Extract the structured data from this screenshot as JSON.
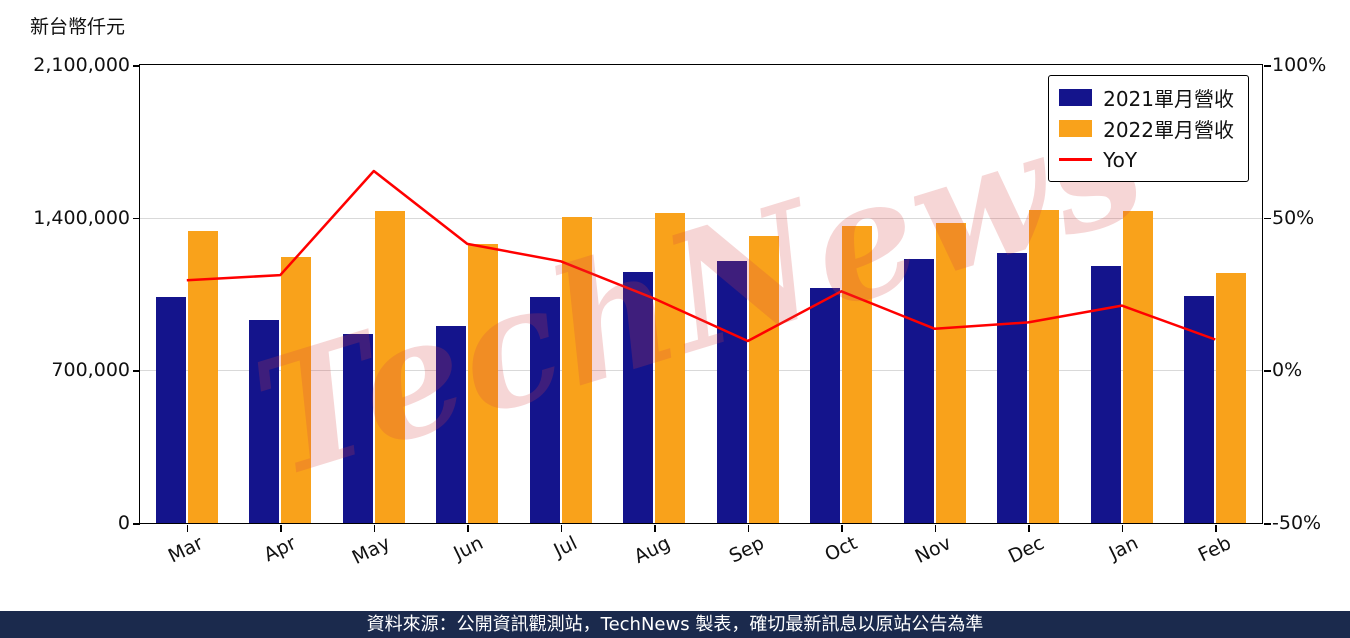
{
  "unit_label": "新台幣仟元",
  "watermark": "TechNews",
  "footer": {
    "text": "資料來源：公開資訊觀測站，TechNews 製表，確切最新訊息以原站公告為準"
  },
  "legend": {
    "items": [
      {
        "label": "2021單月營收",
        "type": "box",
        "color": "#14148c"
      },
      {
        "label": "2022單月營收",
        "type": "box",
        "color": "#f9a21b"
      },
      {
        "label": "YoY",
        "type": "line",
        "color": "#ff0000"
      }
    ]
  },
  "colors": {
    "series_2021": "#14148c",
    "series_2022": "#f9a21b",
    "yoy_line": "#ff0000",
    "footer_bg": "#1b2a4d",
    "gridline": "#d9d9d9",
    "watermark": "rgba(214,69,69,0.22)"
  },
  "chart_data": {
    "type": "bar",
    "title": "",
    "categories": [
      "Mar",
      "Apr",
      "May",
      "Jun",
      "Jul",
      "Aug",
      "Sep",
      "Oct",
      "Nov",
      "Dec",
      "Jan",
      "Feb"
    ],
    "series": [
      {
        "name": "2021單月營收",
        "axis": "left",
        "values": [
          1035000,
          930000,
          865000,
          905000,
          1035000,
          1150000,
          1200000,
          1080000,
          1210000,
          1240000,
          1180000,
          1040000
        ]
      },
      {
        "name": "2022單月營收",
        "axis": "left",
        "values": [
          1340000,
          1220000,
          1430000,
          1280000,
          1405000,
          1420000,
          1315000,
          1360000,
          1375000,
          1435000,
          1430000,
          1145000
        ]
      }
    ],
    "line_series": {
      "name": "YoY",
      "axis": "right",
      "unit": "%",
      "values": [
        29.5,
        31.2,
        65.3,
        41.4,
        35.7,
        23.5,
        9.6,
        25.9,
        13.6,
        15.7,
        21.2,
        10.1
      ]
    },
    "left_axis": {
      "label": "新台幣仟元",
      "range": [
        0,
        2100000
      ],
      "tick_values": [
        0,
        700000,
        1400000,
        2100000
      ],
      "tick_labels": [
        "0",
        "700,000",
        "1,400,000",
        "2,100,000"
      ]
    },
    "right_axis": {
      "range": [
        -50,
        100
      ],
      "tick_values": [
        -50,
        0,
        50,
        100
      ],
      "tick_labels": [
        "-50%",
        "0%",
        "50%",
        "100%"
      ]
    },
    "grid": "horizontal",
    "legend_position": "top-right-inside"
  }
}
